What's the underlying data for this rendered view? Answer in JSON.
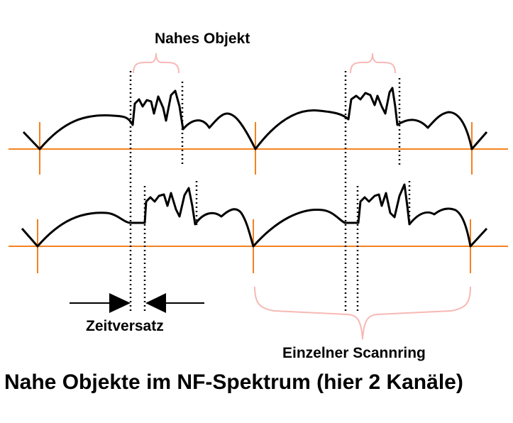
{
  "labels": {
    "near_object": "Nahes Objekt",
    "time_offset": "Zeitversatz",
    "single_scan_ring": "Einzelner Scannring",
    "title": "Nahe Objekte im NF-Spektrum (hier 2 Kanäle)"
  },
  "colors": {
    "baseline": "#f58220",
    "signal": "#000000",
    "brace": "#f7b8b4",
    "marker": "#000000",
    "text": "#000000"
  },
  "channels": 2
}
